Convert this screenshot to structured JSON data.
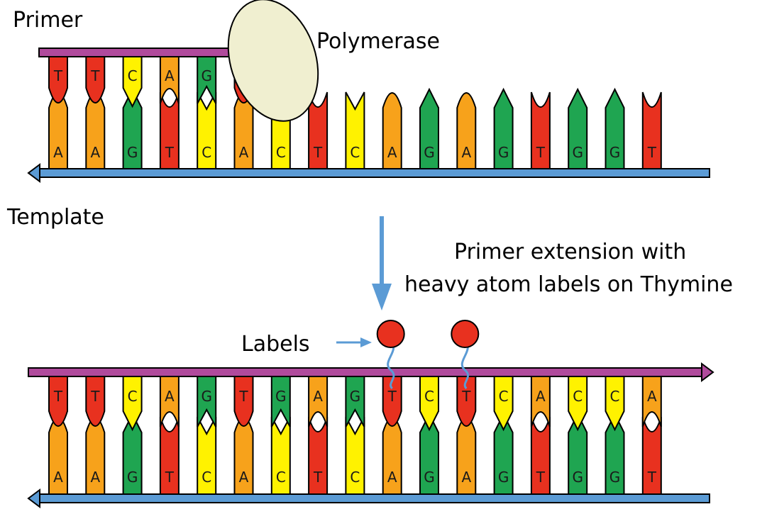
{
  "labels": {
    "primer": "Primer",
    "polymerase": "Polymerase",
    "template": "Template",
    "extension_line1": "Primer extension with",
    "extension_line2": "heavy atom labels on Thymine",
    "labels": "Labels"
  },
  "colors": {
    "A": "#f7a21b",
    "T": "#e8311f",
    "C": "#fff200",
    "G": "#1fa551",
    "primer_arrow": "#b04a9c",
    "template_arrow": "#5b9bd5",
    "down_arrow": "#5b9bd5",
    "polymerase": "#f0efd0",
    "label_bead": "#e8311f",
    "linker": "#5b9bd5"
  },
  "top_panel": {
    "primer_bases": [
      "T",
      "T",
      "C",
      "A",
      "G",
      "T"
    ],
    "template_bases": [
      "A",
      "A",
      "G",
      "T",
      "C",
      "A",
      "C",
      "T",
      "C",
      "A",
      "G",
      "A",
      "G",
      "T",
      "G",
      "G",
      "T"
    ]
  },
  "bottom_panel": {
    "primer_bases": [
      "T",
      "T",
      "C",
      "A",
      "G",
      "T",
      "G",
      "A",
      "G",
      "T",
      "C",
      "T",
      "C",
      "A",
      "C",
      "C",
      "A"
    ],
    "template_bases": [
      "A",
      "A",
      "G",
      "T",
      "C",
      "A",
      "C",
      "T",
      "C",
      "A",
      "G",
      "A",
      "G",
      "T",
      "G",
      "G",
      "T"
    ],
    "labeled_positions": [
      9,
      11
    ]
  }
}
